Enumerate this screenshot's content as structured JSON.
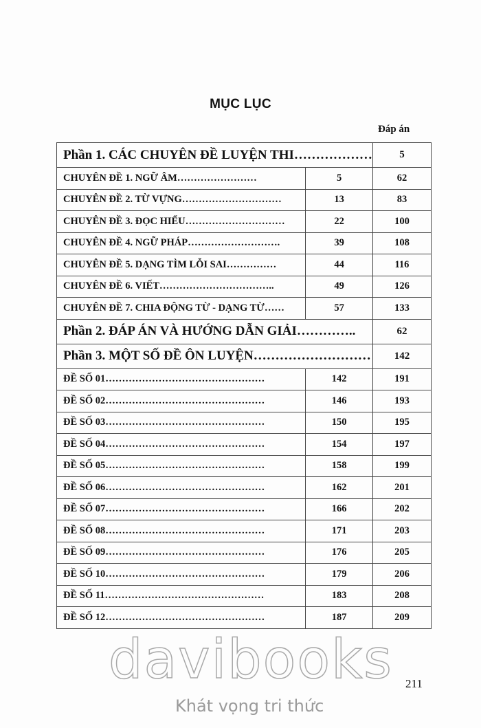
{
  "title": "MỤC LỤC",
  "answer_header": "Đáp án",
  "rows": [
    {
      "type": "part",
      "label": "Phần 1. CÁC CHUYÊN ĐỀ LUYỆN THI………………",
      "page": "5"
    },
    {
      "type": "sub",
      "label": "CHUYÊN ĐỀ 1. NGỮ ÂM……………………",
      "page": "5",
      "answer": "62"
    },
    {
      "type": "sub",
      "label": "CHUYÊN ĐỀ 2. TỪ VỰNG…………………………",
      "page": "13",
      "answer": "83"
    },
    {
      "type": "sub",
      "label": "CHUYÊN ĐỀ 3. ĐỌC HIỂU…………………………",
      "page": "22",
      "answer": "100"
    },
    {
      "type": "sub",
      "label": "CHUYÊN ĐỀ 4. NGỮ PHÁP……………………….",
      "page": "39",
      "answer": "108"
    },
    {
      "type": "sub",
      "label": "CHUYÊN ĐỀ 5. DẠNG TÌM LỖI SAI……………",
      "page": "44",
      "answer": "116"
    },
    {
      "type": "sub",
      "label": "CHUYÊN ĐỀ 6. VIẾT……………………………..",
      "page": "49",
      "answer": "126"
    },
    {
      "type": "sub",
      "label": "CHUYÊN ĐỀ 7. CHIA ĐỘNG TỪ - DẠNG TỪ……",
      "page": "57",
      "answer": "133"
    },
    {
      "type": "part",
      "label": "Phần 2. ĐÁP ÁN VÀ HƯỚNG DẪN GIẢI…………..",
      "page": "62"
    },
    {
      "type": "part",
      "label": "Phần 3. MỘT SỐ ĐỀ ÔN LUYỆN………………………",
      "page": "142"
    },
    {
      "type": "sub",
      "label": "ĐỀ SỐ 01…………………………………………",
      "page": "142",
      "answer": "191"
    },
    {
      "type": "sub",
      "label": "ĐỀ SỐ 02…………………………………………",
      "page": "146",
      "answer": "193"
    },
    {
      "type": "sub",
      "label": "ĐỀ SỐ 03…………………………………………",
      "page": "150",
      "answer": "195"
    },
    {
      "type": "sub",
      "label": "ĐỀ SỐ 04…………………………………………",
      "page": "154",
      "answer": "197"
    },
    {
      "type": "sub",
      "label": "ĐỀ SỐ 05…………………………………………",
      "page": "158",
      "answer": "199"
    },
    {
      "type": "sub",
      "label": "ĐỀ SỐ 06…………………………………………",
      "page": "162",
      "answer": "201"
    },
    {
      "type": "sub",
      "label": "ĐỀ SỐ 07…………………………………………",
      "page": "166",
      "answer": "202"
    },
    {
      "type": "sub",
      "label": "ĐỀ SỐ 08…………………………………………",
      "page": "171",
      "answer": "203"
    },
    {
      "type": "sub",
      "label": "ĐỀ SỐ 09…………………………………………",
      "page": "176",
      "answer": "205"
    },
    {
      "type": "sub",
      "label": "ĐỀ SỐ 10…………………………………………",
      "page": "179",
      "answer": "206"
    },
    {
      "type": "sub",
      "label": "ĐỀ SỐ 11…………………………………………",
      "page": "183",
      "answer": "208"
    },
    {
      "type": "sub",
      "label": "ĐỀ SỐ 12…………………………………………",
      "page": "187",
      "answer": "209"
    }
  ],
  "page_number": "211",
  "watermark": {
    "brand": "davibooks",
    "slogan": "Khát vọng tri thức"
  }
}
